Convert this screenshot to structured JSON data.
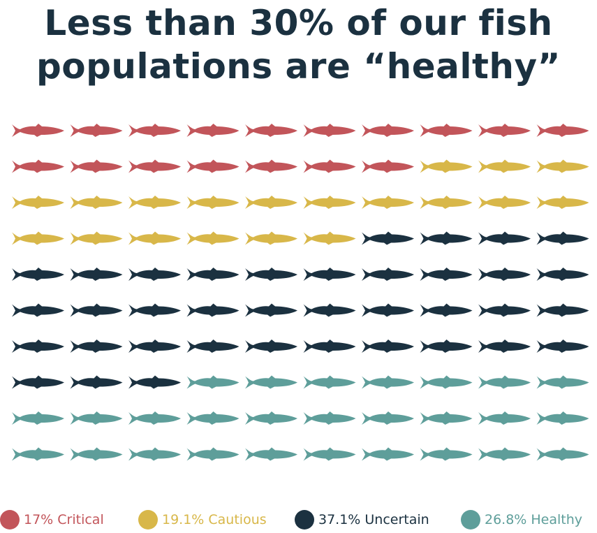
{
  "title": {
    "line1": "Less than 30% of our fish",
    "line2": "populations are “healthy”"
  },
  "colors": {
    "title": "#1b3140",
    "critical": "#c2555a",
    "cautious": "#d8b749",
    "uncertain": "#1b3140",
    "healthy": "#5e9e9a"
  },
  "chart_data": {
    "type": "pictograph",
    "icon": "fish-icon",
    "grid": {
      "rows": 10,
      "columns": 10,
      "total": 100
    },
    "series": [
      {
        "key": "critical",
        "label": "17% Critical",
        "percent": 17,
        "icon_count": 17,
        "color": "#c2555a"
      },
      {
        "key": "cautious",
        "label": "19.1% Cautious",
        "percent": 19.1,
        "icon_count": 19,
        "color": "#d8b749"
      },
      {
        "key": "uncertain",
        "label": "37.1% Uncertain",
        "percent": 37.1,
        "icon_count": 37,
        "color": "#1b3140"
      },
      {
        "key": "healthy",
        "label": "26.8% Healthy",
        "percent": 26.8,
        "icon_count": 27,
        "color": "#5e9e9a"
      }
    ],
    "legend_position": "bottom"
  }
}
